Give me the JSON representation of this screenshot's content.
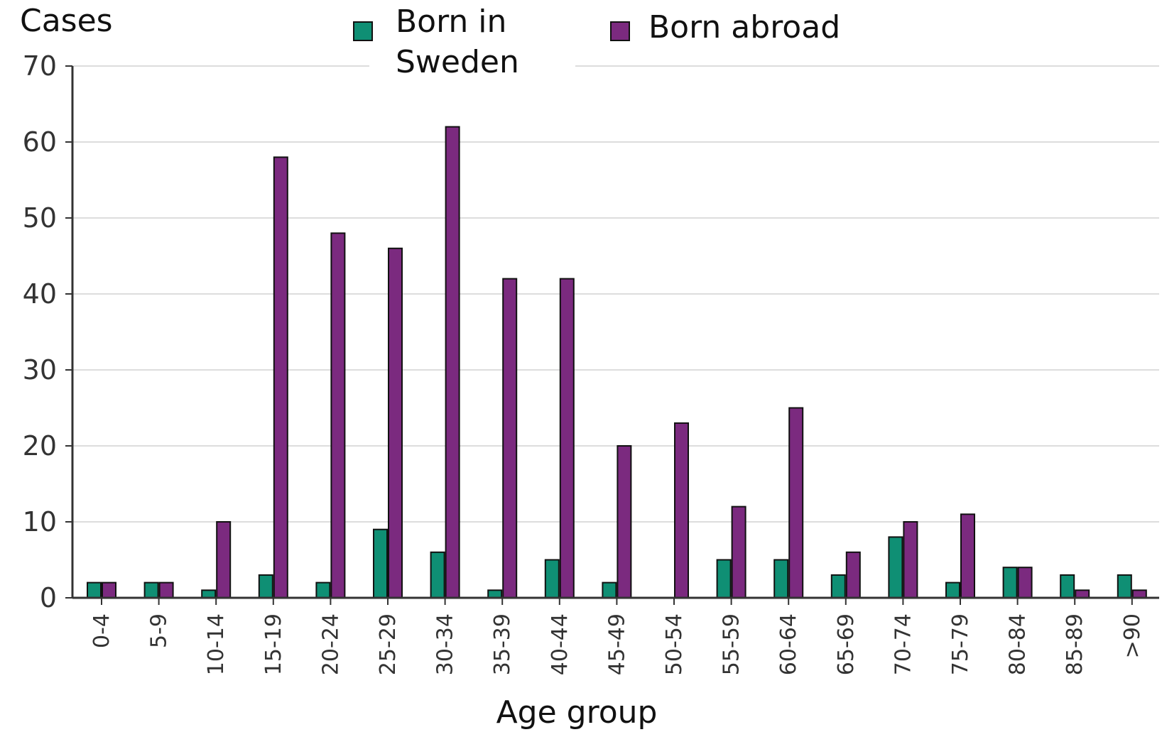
{
  "chart_data": {
    "type": "bar",
    "ylabel": "Cases",
    "xlabel": "Age group",
    "ylim": [
      0,
      70
    ],
    "yticks": [
      0,
      10,
      20,
      30,
      40,
      50,
      60,
      70
    ],
    "grid": true,
    "legend_position": "top",
    "categories": [
      "0-4",
      "5-9",
      "10-14",
      "15-19",
      "20-24",
      "25-29",
      "30-34",
      "35-39",
      "40-44",
      "45-49",
      "50-54",
      "55-59",
      "60-64",
      "65-69",
      "70-74",
      "75-79",
      "80-84",
      "85-89",
      ">90"
    ],
    "series": [
      {
        "name": "Born in Sweden",
        "color": "#0f8f74",
        "legend_lines": [
          "Born in",
          "Sweden"
        ],
        "values": [
          2,
          2,
          1,
          3,
          2,
          9,
          6,
          1,
          5,
          2,
          0,
          5,
          5,
          3,
          8,
          2,
          4,
          3,
          3
        ]
      },
      {
        "name": "Born abroad",
        "color": "#7b2a7f",
        "legend_lines": [
          "Born abroad"
        ],
        "values": [
          2,
          2,
          10,
          58,
          48,
          46,
          62,
          42,
          42,
          20,
          23,
          12,
          25,
          6,
          10,
          11,
          4,
          1,
          1
        ]
      }
    ]
  }
}
